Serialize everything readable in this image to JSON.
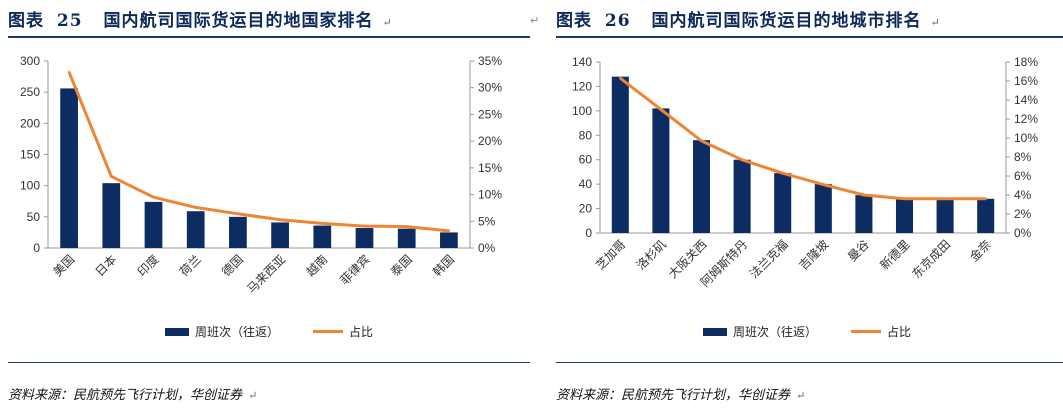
{
  "colors": {
    "bar": "#0d2c61",
    "line": "#ee8533",
    "axis": "#999999",
    "title": "#0b2a5a"
  },
  "edge_mark": "↵",
  "left": {
    "title_prefix": "图表",
    "title_number": "25",
    "title_text": "国内航司国际货运目的地国家排名",
    "title_mark": "↵",
    "source": "资料来源：民航预先飞行计划，华创证券",
    "source_mark": "↵",
    "chart_data": {
      "type": "bar",
      "categories": [
        "美国",
        "日本",
        "印度",
        "荷兰",
        "德国",
        "马来西亚",
        "越南",
        "菲律宾",
        "泰国",
        "韩国"
      ],
      "series": [
        {
          "name": "周班次（往返）",
          "axis": "left",
          "values": [
            256,
            104,
            74,
            59,
            50,
            41,
            36,
            32,
            31,
            25
          ]
        },
        {
          "name": "占比",
          "axis": "right",
          "type": "line",
          "values": [
            32.9,
            13.4,
            9.5,
            7.6,
            6.4,
            5.3,
            4.6,
            4.1,
            4.0,
            3.2
          ]
        }
      ],
      "y_left": {
        "min": 0,
        "max": 300,
        "ticks": [
          "0",
          "50",
          "100",
          "150",
          "200",
          "250",
          "300"
        ]
      },
      "y_right": {
        "min": 0,
        "max": 35,
        "ticks": [
          "0%",
          "5%",
          "10%",
          "15%",
          "20%",
          "25%",
          "30%",
          "35%"
        ]
      },
      "legend": [
        "周班次（往返）",
        "占比"
      ],
      "legend_position": "bottom"
    }
  },
  "right": {
    "title_prefix": "图表",
    "title_number": "26",
    "title_text": "国内航司国际货运目的地城市排名",
    "title_mark": "↵",
    "source": "资料来源：民航预先飞行计划，华创证券",
    "source_mark": "↵",
    "chart_data": {
      "type": "bar",
      "categories": [
        "芝加哥",
        "洛杉矶",
        "大阪关西",
        "阿姆斯特丹",
        "法兰克福",
        "吉隆坡",
        "曼谷",
        "新德里",
        "东京成田",
        "金奈"
      ],
      "series": [
        {
          "name": "周班次（往返）",
          "axis": "left",
          "values": [
            128,
            102,
            76,
            60,
            49,
            40,
            31,
            28,
            28,
            28
          ]
        },
        {
          "name": "占比",
          "axis": "right",
          "type": "line",
          "values": [
            16.3,
            13.0,
            9.7,
            7.7,
            6.3,
            5.1,
            4.0,
            3.6,
            3.6,
            3.6
          ]
        }
      ],
      "y_left": {
        "min": 0,
        "max": 140,
        "ticks": [
          "0",
          "20",
          "40",
          "60",
          "80",
          "100",
          "120",
          "140"
        ]
      },
      "y_right": {
        "min": 0,
        "max": 18,
        "ticks": [
          "0%",
          "2%",
          "4%",
          "6%",
          "8%",
          "10%",
          "12%",
          "14%",
          "16%",
          "18%"
        ]
      },
      "legend": [
        "周班次（往返）",
        "占比"
      ],
      "legend_position": "bottom"
    }
  }
}
